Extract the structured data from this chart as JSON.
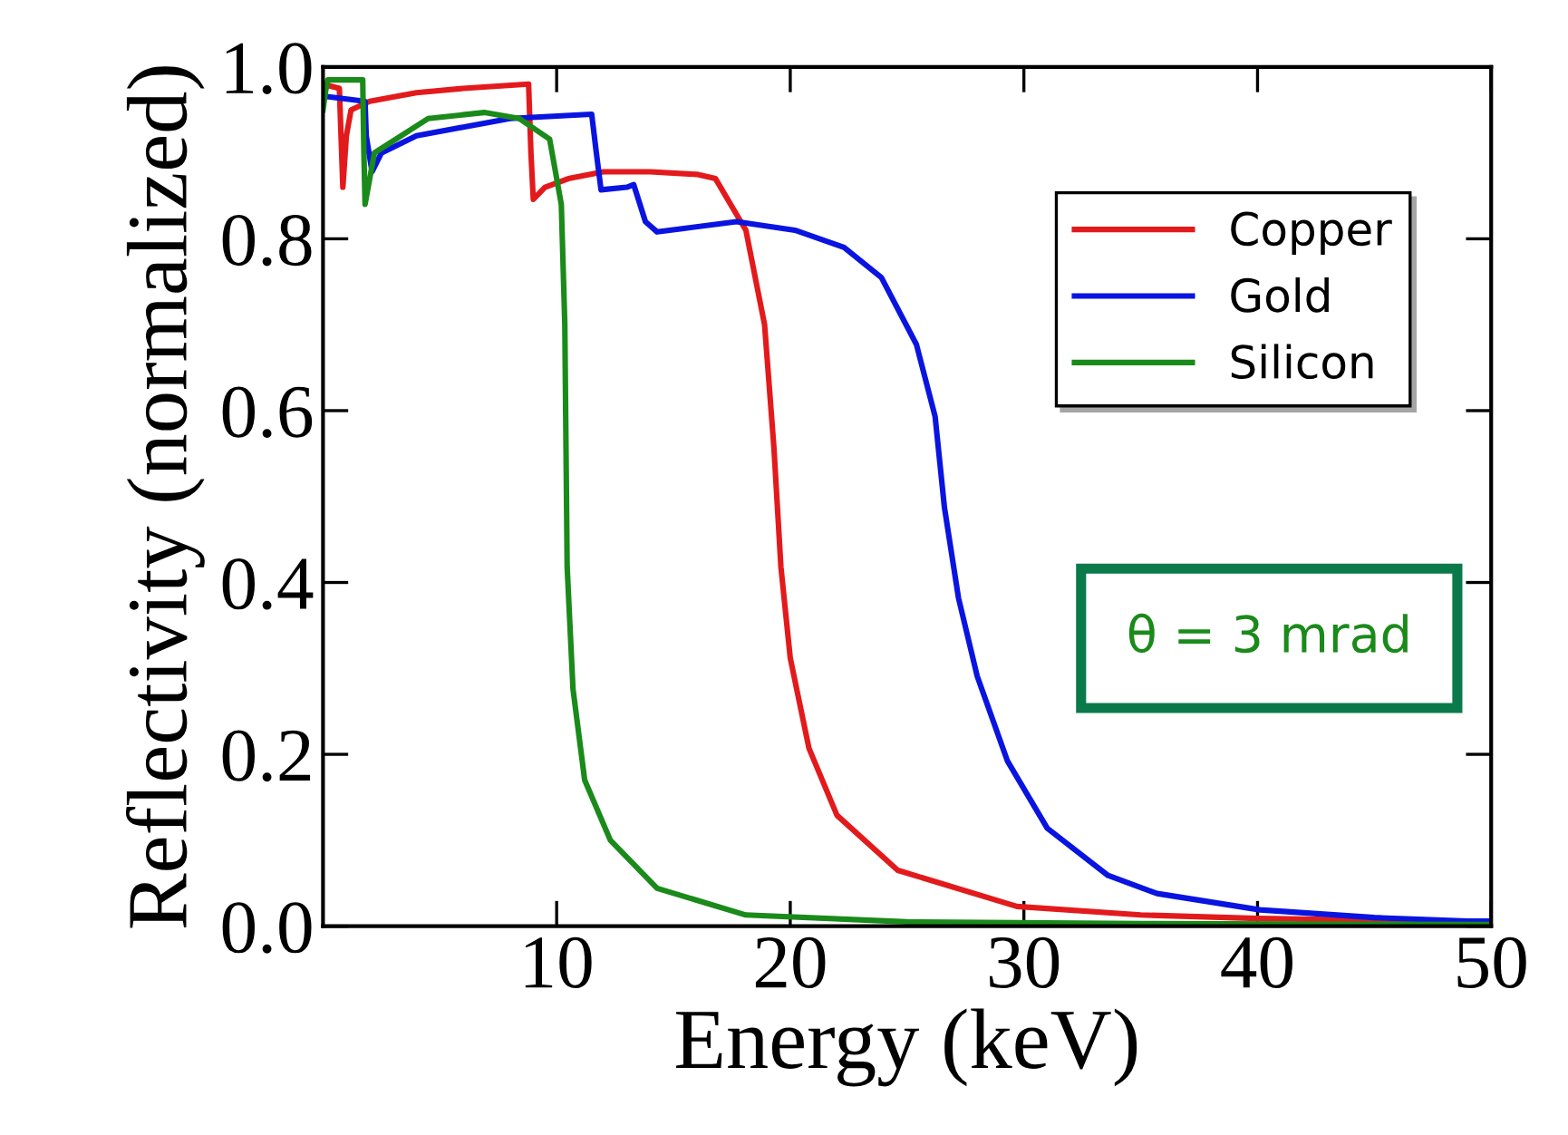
{
  "chart_data": {
    "type": "line",
    "xlabel": "Energy (keV)",
    "ylabel": "Reflectivity (normalized)",
    "xlim": [
      0,
      50
    ],
    "ylim": [
      0,
      1.0
    ],
    "xticks": [
      10,
      20,
      30,
      40,
      50
    ],
    "yticks": [
      {
        "value": 0,
        "label": "0.0"
      },
      {
        "value": 0.2,
        "label": "0.2"
      },
      {
        "value": 0.4,
        "label": "0.4"
      },
      {
        "value": 0.6,
        "label": "0.6"
      },
      {
        "value": 0.8,
        "label": "0.8"
      },
      {
        "value": 1.0,
        "label": "1.0"
      }
    ],
    "grid": false,
    "legend": "top right",
    "marker": "none",
    "line_style": "solid",
    "annotations": [
      "θ = 3 mrad"
    ],
    "series": [
      {
        "name": "Copper",
        "color": "#e31a1c",
        "x": [
          0,
          0.7,
          0.85,
          1.0,
          1.2,
          2,
          4,
          6,
          8.8,
          8.9,
          9.0,
          9.5,
          10.5,
          12,
          14,
          16,
          16.8,
          18.1,
          18.9,
          19.3,
          19.6,
          20.0,
          20.8,
          22.0,
          24.6,
          29.7,
          35,
          40,
          45,
          50
        ],
        "values": [
          0.98,
          0.975,
          0.86,
          0.92,
          0.95,
          0.96,
          0.97,
          0.975,
          0.98,
          0.9,
          0.846,
          0.86,
          0.87,
          0.878,
          0.878,
          0.875,
          0.87,
          0.81,
          0.7,
          0.557,
          0.418,
          0.312,
          0.207,
          0.129,
          0.065,
          0.023,
          0.013,
          0.009,
          0.007,
          0.005
        ]
      },
      {
        "name": "Gold",
        "color": "#0a14e0",
        "x": [
          0,
          1.8,
          1.85,
          2.1,
          2.5,
          4,
          6,
          8,
          11.5,
          11.7,
          11.9,
          13.0,
          13.3,
          13.8,
          14.3,
          17.7,
          20.2,
          22.3,
          23.9,
          25.4,
          26.2,
          26.6,
          27.2,
          28.0,
          29.3,
          31.0,
          33.6,
          35.7,
          40.1,
          45,
          49,
          50
        ],
        "values": [
          0.966,
          0.96,
          0.92,
          0.878,
          0.9,
          0.92,
          0.93,
          0.94,
          0.945,
          0.9,
          0.857,
          0.86,
          0.863,
          0.82,
          0.808,
          0.82,
          0.81,
          0.79,
          0.755,
          0.677,
          0.593,
          0.487,
          0.382,
          0.291,
          0.192,
          0.114,
          0.059,
          0.038,
          0.019,
          0.01,
          0.006,
          0.006
        ]
      },
      {
        "name": "Silicon",
        "color": "#1a8a1a",
        "x": [
          0,
          0.1,
          0.2,
          1.7,
          1.75,
          1.8,
          2.0,
          2.2,
          4.5,
          6.9,
          8.4,
          9.7,
          10.2,
          10.35,
          10.45,
          10.7,
          11.2,
          12.3,
          14.3,
          18.1,
          25,
          35,
          50
        ],
        "values": [
          0.95,
          0.97,
          0.985,
          0.985,
          0.9,
          0.84,
          0.87,
          0.9,
          0.94,
          0.947,
          0.94,
          0.916,
          0.84,
          0.7,
          0.418,
          0.276,
          0.17,
          0.1,
          0.044,
          0.013,
          0.005,
          0.003,
          0.002
        ]
      }
    ]
  }
}
